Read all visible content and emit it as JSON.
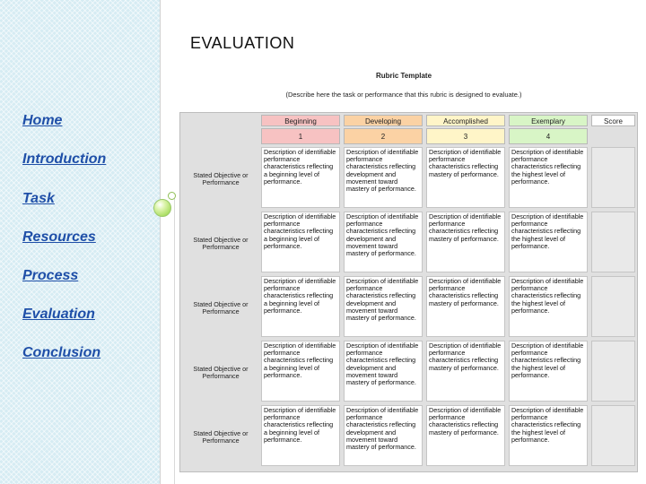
{
  "page": {
    "title": "EVALUATION"
  },
  "sidebar": {
    "items": [
      {
        "label": "Home"
      },
      {
        "label": "Introduction"
      },
      {
        "label": "Task"
      },
      {
        "label": "Resources"
      },
      {
        "label": "Process"
      },
      {
        "label": "Evaluation"
      },
      {
        "label": "Conclusion"
      }
    ]
  },
  "rubric": {
    "title": "Rubric Template",
    "subtitle": "(Describe here the task or performance that this rubric is designed to evaluate.)",
    "headers": [
      "Beginning",
      "Developing",
      "Accomplished",
      "Exemplary",
      "Score"
    ],
    "numbers": [
      "1",
      "2",
      "3",
      "4"
    ],
    "header_colors": [
      "#f7c2c2",
      "#fbd2a4",
      "#fff5c8",
      "#d8f5c6"
    ],
    "rows": [
      {
        "label": "Stated Objective or Performance"
      },
      {
        "label": "Stated Objective or Performance"
      },
      {
        "label": "Stated Objective or Performance"
      },
      {
        "label": "Stated Objective or Performance"
      },
      {
        "label": "Stated Objective or Performance"
      }
    ],
    "descriptions": [
      "Description of identifiable performance characteristics reflecting a beginning level of performance.",
      "Description of identifiable performance characteristics reflecting development and movement toward mastery of performance.",
      "Description of identifiable performance characteristics reflecting mastery of performance.",
      "Description of identifiable performance characteristics reflecting the highest level of performance."
    ]
  }
}
